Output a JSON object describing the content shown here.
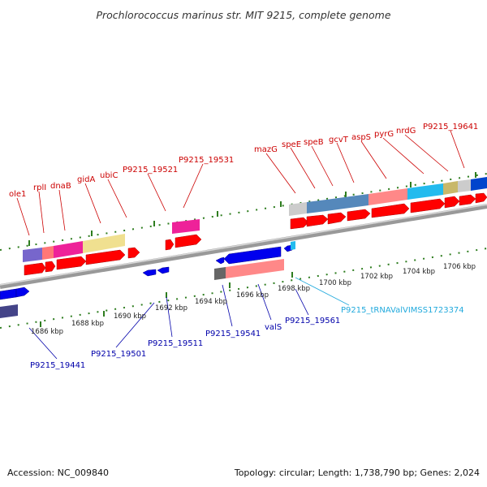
{
  "title": "Prochlorococcus marinus str. MIT 9215, complete genome",
  "footer": {
    "accession": "Accession: NC_009840",
    "summary": "Topology: circular; Length: 1,738,790 bp; Genes: 2,024"
  },
  "colors": {
    "label_top": "#cc0000",
    "label_bottom": "#0000aa",
    "label_trna": "#22aadd",
    "tick": "#2e7d1f",
    "backbone": "#888888",
    "forward_cds": "#ff0000",
    "reverse_cds": "#0000ee"
  },
  "scale_labels": [
    "1686 kbp",
    "1688 kbp",
    "1690 kbp",
    "1692 kbp",
    "1694 kbp",
    "1696 kbp",
    "1698 kbp",
    "1700 kbp",
    "1702 kbp",
    "1704 kbp",
    "1706 kbp"
  ],
  "top_genes": [
    "ole1",
    "rplI",
    "dnaB",
    "gidA",
    "ubiC",
    "P9215_19521",
    "P9215_19531",
    "mazG",
    "speE",
    "speB",
    "gcvT",
    "aspS",
    "pyrG",
    "nrdG",
    "P9215_19641"
  ],
  "bottom_genes": [
    "P9215_19441",
    "P9215_19501",
    "P9215_19511",
    "P9215_19541",
    "valS",
    "P9215_19561",
    "P9215_tRNAValVIMSS1723374"
  ]
}
